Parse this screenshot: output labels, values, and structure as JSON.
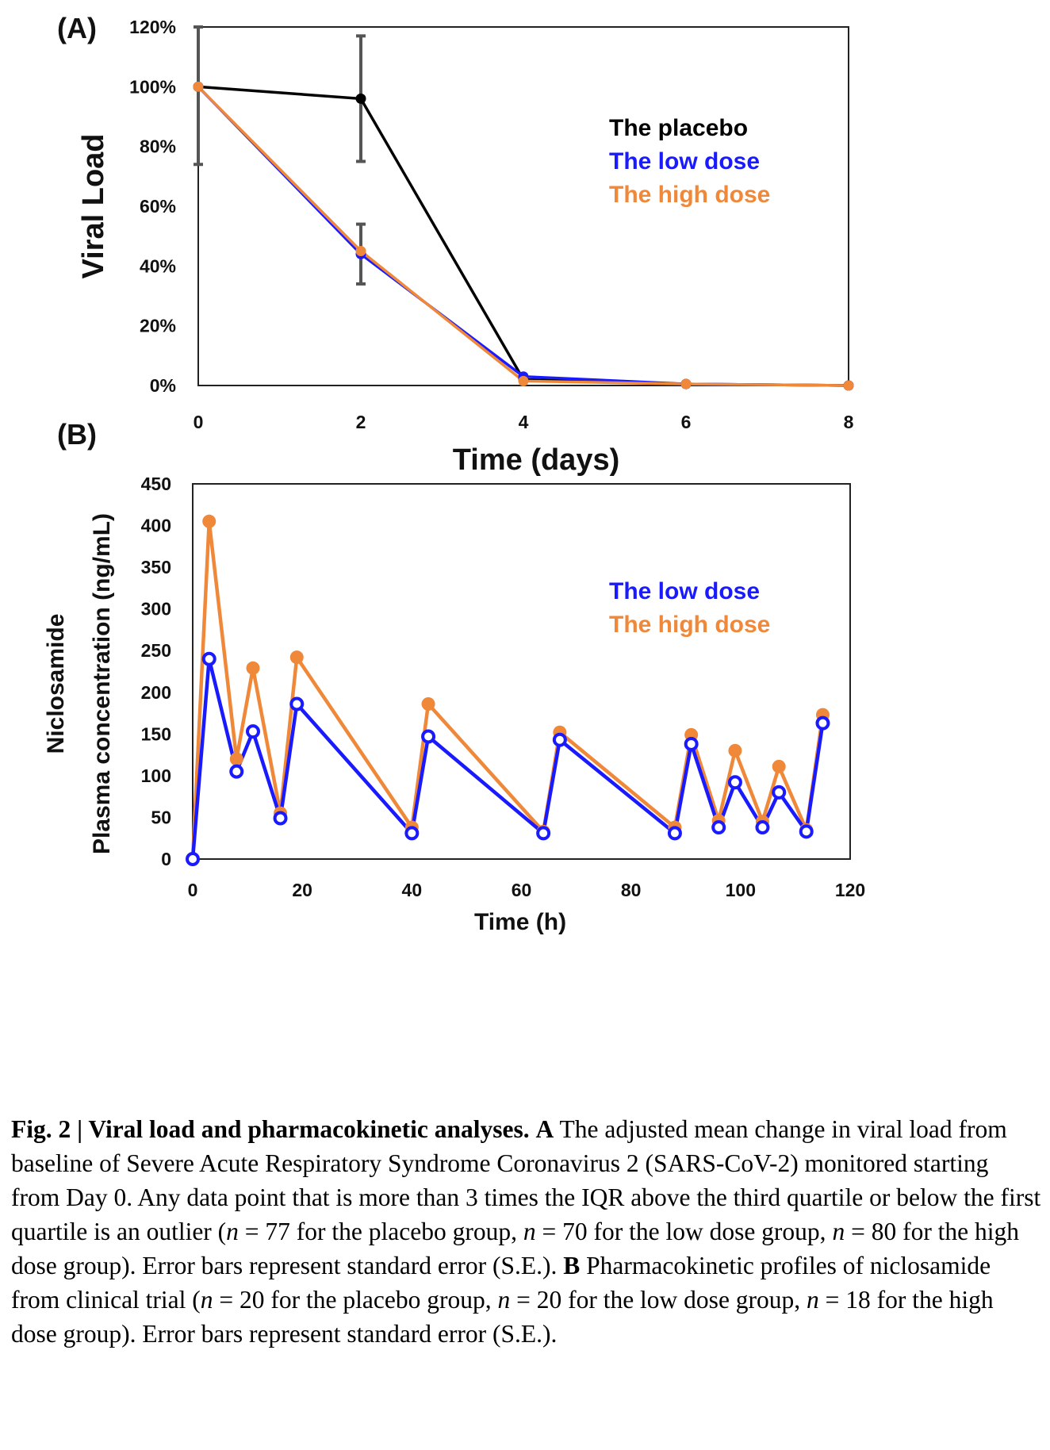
{
  "panels": {
    "a_label": "(A)",
    "b_label": "(B)"
  },
  "colors": {
    "placebo": "#000000",
    "low_dose": "#1a1aff",
    "high_dose": "#f0883a",
    "error_bar": "#555555"
  },
  "chart_data": [
    {
      "type": "line",
      "panel": "A",
      "title": "",
      "xlabel": "Time (days)",
      "ylabel": "Viral Load",
      "xlim": [
        0,
        8
      ],
      "ylim": [
        0,
        120
      ],
      "x_ticks": [
        "0",
        "2",
        "4",
        "6",
        "8"
      ],
      "y_ticks": [
        "0%",
        "20%",
        "40%",
        "60%",
        "80%",
        "100%",
        "120%"
      ],
      "legend_position": "top-right",
      "series": [
        {
          "name": "The placebo",
          "color": "#000000",
          "x": [
            0,
            2,
            4,
            6,
            8
          ],
          "y": [
            100,
            96,
            2,
            0.5,
            0
          ],
          "error": [
            26,
            21,
            null,
            null,
            null
          ]
        },
        {
          "name": "The low dose",
          "color": "#1a1aff",
          "x": [
            0,
            2,
            4,
            6,
            8
          ],
          "y": [
            100,
            44,
            3,
            0.5,
            0
          ],
          "error": [
            null,
            10,
            null,
            null,
            null
          ]
        },
        {
          "name": "The high dose",
          "color": "#f0883a",
          "x": [
            0,
            2,
            4,
            6,
            8
          ],
          "y": [
            100,
            45,
            1.5,
            0.5,
            0
          ],
          "error": [
            null,
            null,
            null,
            null,
            null
          ]
        }
      ]
    },
    {
      "type": "line",
      "panel": "B",
      "title": "",
      "xlabel": "Time (h)",
      "ylabel_line1": "Niclosamide",
      "ylabel_line2": "Plasma concentration (ng/mL)",
      "xlim": [
        0,
        120
      ],
      "ylim": [
        0,
        450
      ],
      "x_ticks": [
        "0",
        "20",
        "40",
        "60",
        "80",
        "100",
        "120"
      ],
      "y_ticks": [
        "0",
        "50",
        "100",
        "150",
        "200",
        "250",
        "300",
        "350",
        "400",
        "450"
      ],
      "legend_position": "top-right",
      "series": [
        {
          "name": "The low dose",
          "color": "#1a1aff",
          "marker": "open-circle",
          "x": [
            0,
            3,
            8,
            11,
            16,
            19,
            40,
            43,
            64,
            67,
            88,
            91,
            96,
            99,
            104,
            107,
            112,
            115
          ],
          "y": [
            0,
            240,
            105,
            153,
            49,
            186,
            31,
            147,
            31,
            143,
            31,
            138,
            38,
            92,
            38,
            80,
            33,
            163
          ]
        },
        {
          "name": "The high dose",
          "color": "#f0883a",
          "marker": "filled-circle",
          "x": [
            0,
            3,
            8,
            11,
            16,
            19,
            40,
            43,
            64,
            67,
            88,
            91,
            96,
            99,
            104,
            107,
            112,
            115
          ],
          "y": [
            0,
            405,
            120,
            229,
            55,
            242,
            38,
            186,
            33,
            152,
            38,
            149,
            46,
            130,
            45,
            111,
            35,
            173
          ]
        }
      ]
    }
  ],
  "caption": {
    "fig_label": "Fig. 2 | Viral load and pharmacokinetic analyses.",
    "a_label": "A",
    "seg1": " The adjusted mean change in viral load from baseline of Severe Acute Respiratory Syndrome Coronavirus 2 (SARS-CoV-2) monitored starting from Day 0. Any data point that is more than 3 times the IQR above the third quartile or below the first quartile is an outlier (",
    "n1": "n",
    "seg2": " = 77 for the placebo group, ",
    "n2": "n",
    "seg3": " = 70 for the low dose group, ",
    "n3": "n",
    "seg4": " = 80 for the high dose group). Error bars represent standard error (S.E.). ",
    "b_label": "B",
    "seg5": " Pharmacokinetic profiles of niclosamide from clinical trial (",
    "n4": "n",
    "seg6": " = 20 for the placebo group, ",
    "n5": "n",
    "seg7": " = 20 for the low dose group, ",
    "n6": "n",
    "seg8": " = 18 for the high dose group). Error bars represent standard error (S.E.)."
  }
}
